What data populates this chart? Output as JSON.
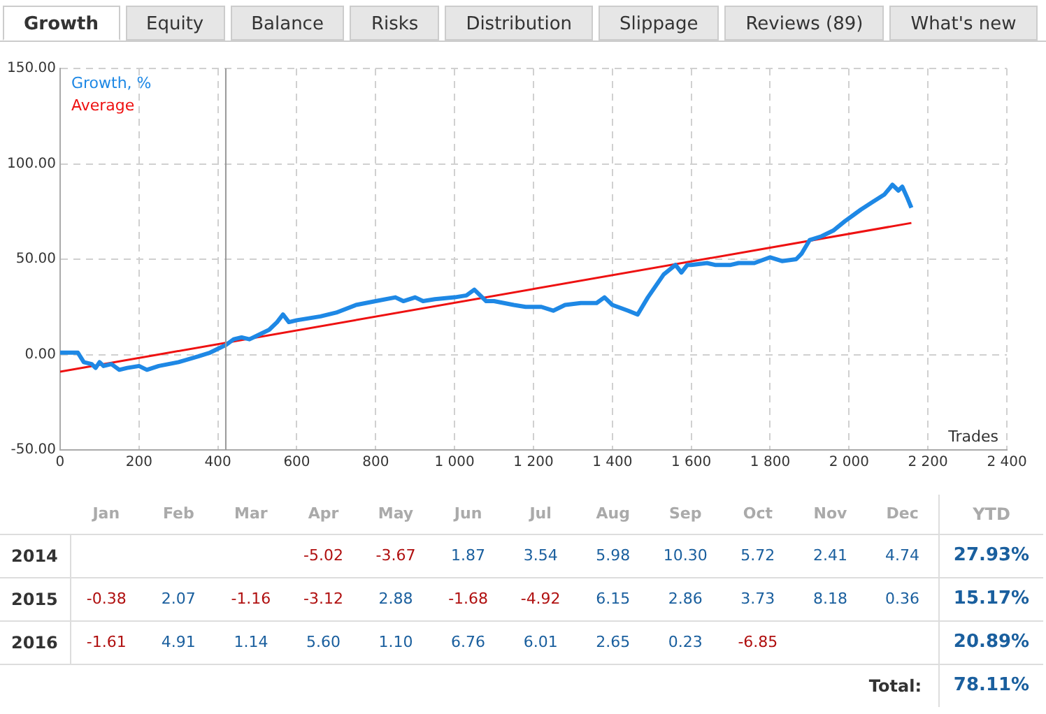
{
  "chart_data": [
    {
      "type": "other",
      "annotations": [
        "Growth",
        "Equity",
        "Balance",
        "Risks",
        "Distribution",
        "Slippage",
        "Reviews (89)",
        "What's new"
      ]
    },
    {
      "type": "line",
      "xlabel": "Trades",
      "legend": "top left",
      "grid": true,
      "marker": "none",
      "line_style": "solid",
      "xlim": [
        0,
        2400
      ],
      "xticks": [
        0,
        200,
        400,
        600,
        800,
        {
          "value": 1000,
          "label": "1 000"
        },
        {
          "value": 1200,
          "label": "1 200"
        },
        {
          "value": 1400,
          "label": "1 400"
        },
        {
          "value": 1600,
          "label": "1 600"
        },
        {
          "value": 1800,
          "label": "1 800"
        },
        {
          "value": 2000,
          "label": "2 000"
        },
        {
          "value": 2200,
          "label": "2 200"
        },
        {
          "value": 2400,
          "label": "2 400"
        }
      ],
      "ylim": [
        -50,
        150
      ],
      "yticks": [
        {
          "value": -50,
          "label": "-50.00"
        },
        {
          "value": 0,
          "label": "0.00"
        },
        {
          "value": 50,
          "label": "50.00"
        },
        {
          "value": 100,
          "label": "100.00"
        },
        {
          "value": 150,
          "label": "150.00"
        }
      ],
      "ref_lines": [
        {
          "axis": "x",
          "value": 420,
          "color": "#999999"
        }
      ],
      "series": [
        {
          "name": "Growth, %",
          "color": "#1e88e5",
          "x": [
            0,
            30,
            45,
            60,
            80,
            90,
            100,
            110,
            130,
            150,
            170,
            200,
            220,
            250,
            300,
            350,
            380,
            400,
            420,
            440,
            460,
            480,
            500,
            530,
            550,
            565,
            580,
            600,
            630,
            660,
            700,
            750,
            800,
            850,
            870,
            900,
            920,
            950,
            1000,
            1030,
            1050,
            1080,
            1100,
            1150,
            1180,
            1220,
            1250,
            1280,
            1320,
            1360,
            1380,
            1400,
            1440,
            1464,
            1490,
            1530,
            1560,
            1575,
            1590,
            1600,
            1640,
            1660,
            1700,
            1720,
            1760,
            1800,
            1830,
            1866,
            1880,
            1900,
            1930,
            1960,
            1990,
            2010,
            2030,
            2060,
            2090,
            2110,
            2125,
            2135,
            2148,
            2158
          ],
          "values": [
            1,
            1,
            1,
            -4,
            -5,
            -7,
            -4,
            -6,
            -5,
            -8,
            -7,
            -6,
            -8,
            -6,
            -4,
            -1,
            1,
            3,
            5,
            8,
            9,
            8,
            10,
            13,
            17,
            21,
            17,
            18,
            19,
            20,
            22,
            26,
            28,
            30,
            28,
            30,
            28,
            29,
            30,
            31,
            34,
            28,
            28,
            26,
            25,
            25,
            23,
            26,
            27,
            27,
            30,
            26,
            23,
            21,
            30,
            42,
            47,
            43,
            47,
            47,
            48,
            47,
            47,
            48,
            48,
            51,
            49,
            50,
            53,
            60,
            62,
            65,
            70,
            73,
            76,
            80,
            84,
            89,
            86,
            88,
            82,
            77
          ]
        },
        {
          "name": "Average",
          "color": "#ee1111",
          "x": [
            0,
            2158
          ],
          "values": [
            -9,
            69
          ]
        }
      ]
    },
    {
      "type": "heatmap",
      "categories": [
        "Jan",
        "Feb",
        "Mar",
        "Apr",
        "May",
        "Jun",
        "Jul",
        "Aug",
        "Sep",
        "Oct",
        "Nov",
        "Dec",
        "YTD"
      ],
      "y_categories": [
        "2014",
        "2015",
        "2016",
        "Total:"
      ],
      "cells": [
        [
          null,
          null,
          null,
          -5.02,
          -3.67,
          1.87,
          3.54,
          5.98,
          10.3,
          5.72,
          2.41,
          4.74,
          27.93
        ],
        [
          -0.38,
          2.07,
          -1.16,
          -3.12,
          2.88,
          -1.68,
          -4.92,
          6.15,
          2.86,
          3.73,
          8.18,
          0.36,
          15.17
        ],
        [
          -1.61,
          4.91,
          1.14,
          5.6,
          1.1,
          6.76,
          6.01,
          2.65,
          0.23,
          -6.85,
          null,
          null,
          20.89
        ],
        [
          null,
          null,
          null,
          null,
          null,
          null,
          null,
          null,
          null,
          null,
          null,
          null,
          78.11
        ]
      ],
      "cell_labels": [
        [
          null,
          null,
          null,
          "-5.02",
          "-3.67",
          "1.87",
          "3.54",
          "5.98",
          "10.30",
          "5.72",
          "2.41",
          "4.74",
          "27.93%"
        ],
        [
          "-0.38",
          "2.07",
          "-1.16",
          "-3.12",
          "2.88",
          "-1.68",
          "-4.92",
          "6.15",
          "2.86",
          "3.73",
          "8.18",
          "0.36",
          "15.17%"
        ],
        [
          "-1.61",
          "4.91",
          "1.14",
          "5.60",
          "1.10",
          "6.76",
          "6.01",
          "2.65",
          "0.23",
          "-6.85",
          null,
          null,
          "20.89%"
        ],
        [
          null,
          null,
          null,
          null,
          null,
          null,
          null,
          null,
          null,
          null,
          null,
          null,
          "78.11%"
        ]
      ]
    }
  ]
}
